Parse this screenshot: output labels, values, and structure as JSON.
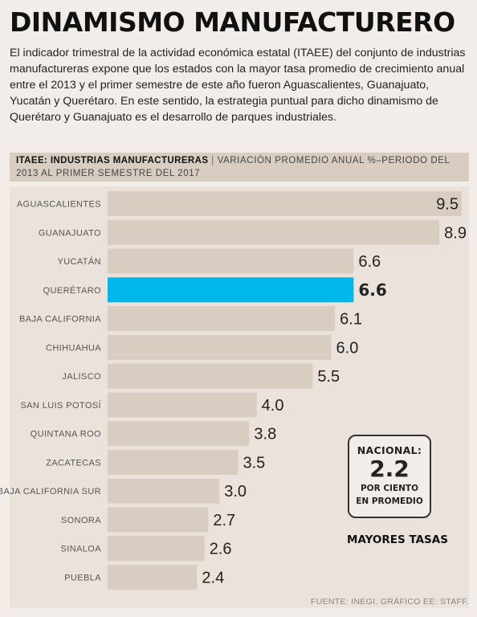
{
  "title": "DINAMISMO MANUFACTURERO",
  "intro": "El indicador trimestral de la actividad económica estatal (ITAEE) del conjunto de industrias manufactureras expone que los estados con la mayor tasa promedio de crecimiento anual entre el 2013 y el primer semestre de este año fueron Aguascalientes, Guanajuato, Yucatán y Querétaro. En este sentido, la estrategia puntual para dicho dinamismo de Querétaro y Guanajuato es el desarrollo de parques industriales.",
  "chart_header": {
    "bold": "ITAEE: INDUSTRIAS MANUFACTURERAS",
    "separator": "|",
    "rest": "VARIACIÓN PROMEDIO ANUAL %–PERIODO DEL 2013 AL PRIMER SEMESTRE DEL 2017"
  },
  "colors": {
    "bar": "#d9cdc2",
    "highlight": "#00b7ea",
    "plot_background": "#ebe3db"
  },
  "chart_data": {
    "type": "bar",
    "orientation": "horizontal",
    "categories": [
      "AGUASCALIENTES",
      "GUANAJUATO",
      "YUCATÁN",
      "QUERÉTARO",
      "BAJA CALIFORNIA",
      "CHIHUAHUA",
      "JALISCO",
      "SAN LUIS POTOSÍ",
      "QUINTANA ROO",
      "ZACATECAS",
      "BAJA CALIFORNIA SUR",
      "SONORA",
      "SINALOA",
      "PUEBLA"
    ],
    "values": [
      9.5,
      8.9,
      6.6,
      6.6,
      6.1,
      6.0,
      5.5,
      4.0,
      3.8,
      3.5,
      3.0,
      2.7,
      2.6,
      2.4
    ],
    "value_labels": [
      "9.5",
      "8.9",
      "6.6",
      "6.6",
      "6.1",
      "6.0",
      "5.5",
      "4.0",
      "3.8",
      "3.5",
      "3.0",
      "2.7",
      "2.6",
      "2.4"
    ],
    "highlight": "QUERÉTARO",
    "xlim": [
      0,
      9.5
    ],
    "grid": false,
    "legend": "none"
  },
  "national": {
    "label": "NACIONAL:",
    "value": "2.2",
    "sub1": "POR CIENTO",
    "sub2": "EN PROMEDIO"
  },
  "mayores_label": "MAYORES TASAS",
  "source": "FUENTE: INEGI. GRÁFICO EE: STAFF."
}
